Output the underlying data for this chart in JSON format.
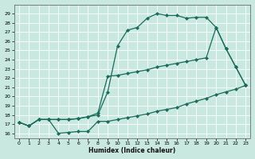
{
  "xlabel": "Humidex (Indice chaleur)",
  "xlim_min": -0.5,
  "xlim_max": 23.5,
  "ylim_min": 15.5,
  "ylim_max": 30.0,
  "xticks": [
    0,
    1,
    2,
    3,
    4,
    5,
    6,
    7,
    8,
    9,
    10,
    11,
    12,
    13,
    14,
    15,
    16,
    17,
    18,
    19,
    20,
    21,
    22,
    23
  ],
  "yticks": [
    16,
    17,
    18,
    19,
    20,
    21,
    22,
    23,
    24,
    25,
    26,
    27,
    28,
    29
  ],
  "bg_color": "#c8e8e0",
  "grid_color": "#b0d8d0",
  "line_color": "#1a6b5a",
  "line1_x": [
    0,
    1,
    2,
    3,
    4,
    5,
    6,
    7,
    8,
    9,
    10,
    11,
    12,
    13,
    14,
    15,
    16,
    17,
    18,
    19,
    20,
    21,
    22,
    23
  ],
  "line1_y": [
    17.2,
    16.8,
    17.5,
    17.5,
    17.5,
    17.5,
    17.6,
    17.8,
    18.0,
    20.5,
    25.5,
    27.2,
    27.5,
    28.5,
    29.0,
    28.8,
    28.8,
    28.5,
    28.6,
    28.6,
    27.5,
    25.2,
    23.2,
    21.2
  ],
  "line2_x": [
    0,
    1,
    2,
    3,
    4,
    5,
    6,
    7,
    8,
    9,
    10,
    11,
    12,
    13,
    14,
    15,
    16,
    17,
    18,
    19,
    20,
    21,
    22,
    23
  ],
  "line2_y": [
    17.2,
    16.8,
    17.5,
    17.5,
    17.5,
    17.5,
    17.6,
    17.8,
    18.2,
    22.2,
    22.3,
    22.5,
    22.7,
    22.9,
    23.2,
    23.4,
    23.6,
    23.8,
    24.0,
    24.2,
    27.5,
    25.2,
    23.2,
    21.2
  ],
  "line3_x": [
    0,
    1,
    2,
    3,
    4,
    5,
    6,
    7,
    8,
    9,
    10,
    11,
    12,
    13,
    14,
    15,
    16,
    17,
    18,
    19,
    20,
    21,
    22,
    23
  ],
  "line3_y": [
    17.2,
    16.8,
    17.5,
    17.5,
    16.0,
    16.1,
    16.2,
    16.2,
    17.3,
    17.3,
    17.5,
    17.7,
    17.9,
    18.1,
    18.4,
    18.6,
    18.8,
    19.2,
    19.5,
    19.8,
    20.2,
    20.5,
    20.8,
    21.2
  ]
}
